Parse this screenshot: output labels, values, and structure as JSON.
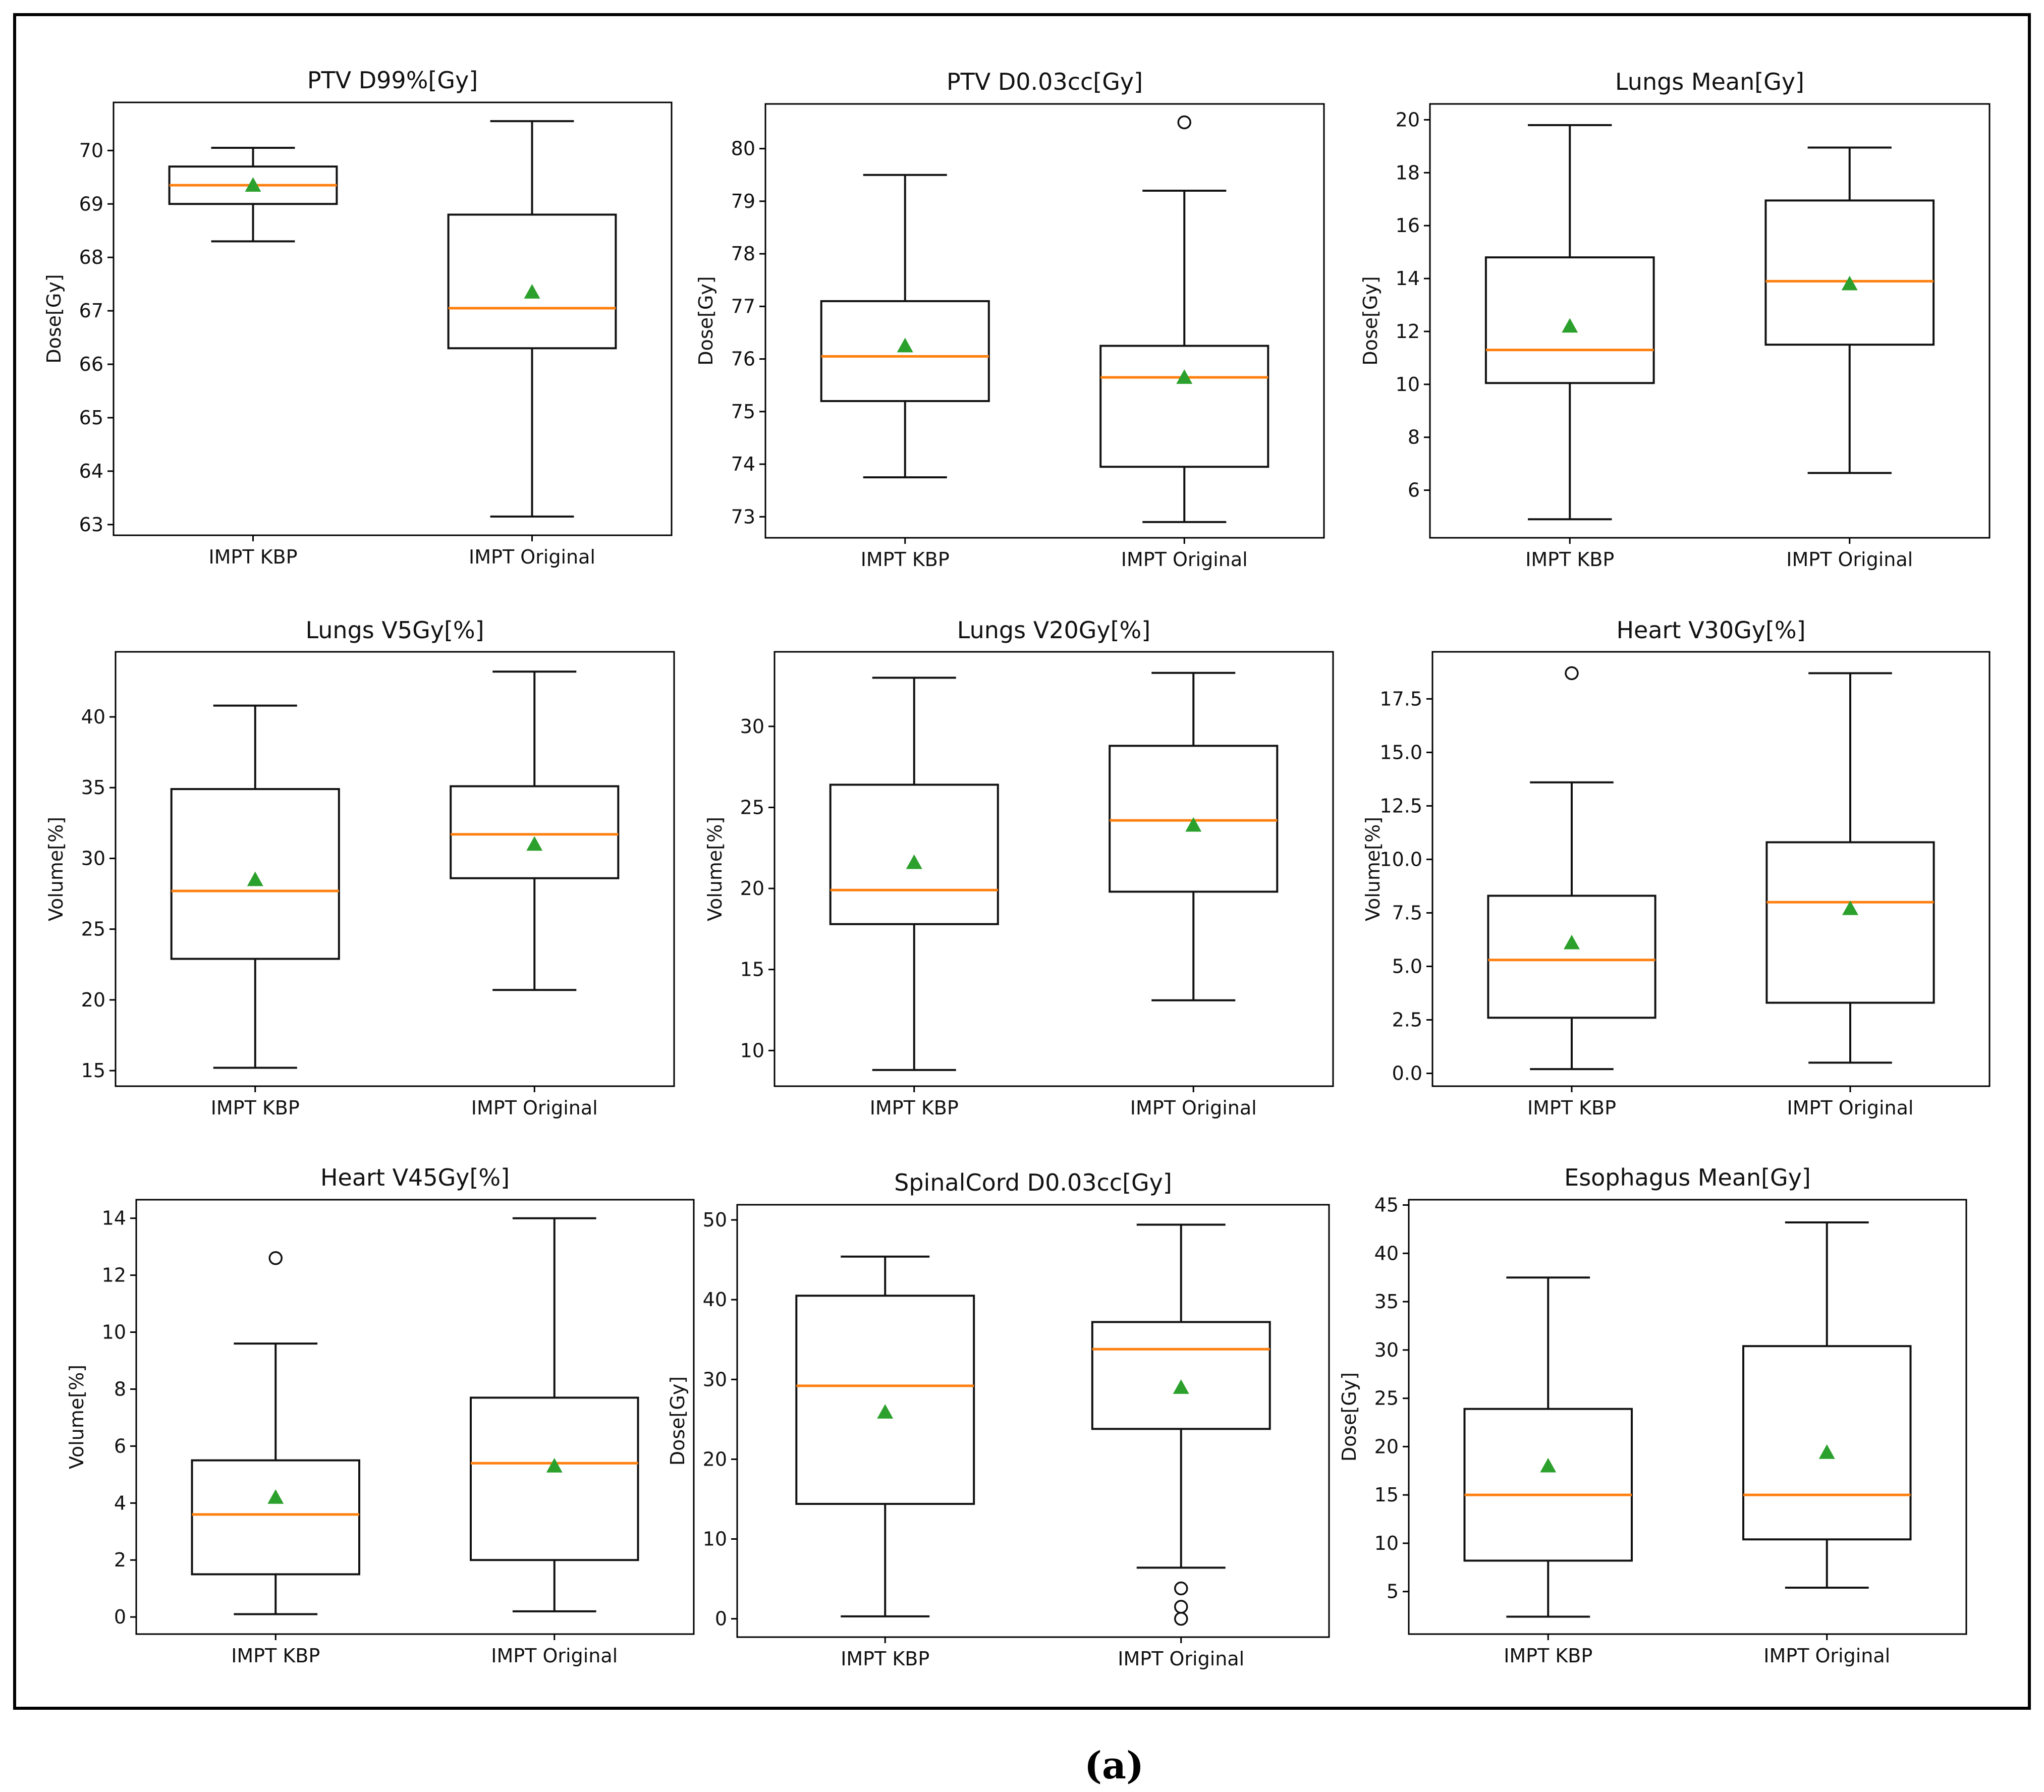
{
  "figure": {
    "caption": "(a)",
    "colors": {
      "median": "#ff7f0e",
      "mean": "#2ca02c",
      "box": "#111111",
      "frame": "#000000"
    }
  },
  "chart_data": [
    {
      "type": "box",
      "title": "PTV D99%[Gy]",
      "ylabel": "Dose[Gy]",
      "ylim": [
        62.8,
        70.9
      ],
      "yticks": [
        "63",
        "64",
        "65",
        "66",
        "67",
        "68",
        "69",
        "70"
      ],
      "categories": [
        "IMPT KBP",
        "IMPT Original"
      ],
      "boxes": [
        {
          "whisker_low": 68.3,
          "q1": 69.0,
          "median": 69.35,
          "q3": 69.7,
          "whisker_high": 70.05,
          "mean": 69.35,
          "outliers": []
        },
        {
          "whisker_low": 63.15,
          "q1": 66.3,
          "median": 67.05,
          "q3": 68.8,
          "whisker_high": 70.55,
          "mean": 67.35,
          "outliers": []
        }
      ]
    },
    {
      "type": "box",
      "title": "PTV D0.03cc[Gy]",
      "ylabel": "Dose[Gy]",
      "ylim": [
        72.6,
        80.85
      ],
      "yticks": [
        "73",
        "74",
        "75",
        "76",
        "77",
        "78",
        "79",
        "80"
      ],
      "categories": [
        "IMPT KBP",
        "IMPT Original"
      ],
      "boxes": [
        {
          "whisker_low": 73.75,
          "q1": 75.2,
          "median": 76.05,
          "q3": 77.1,
          "whisker_high": 79.5,
          "mean": 76.25,
          "outliers": []
        },
        {
          "whisker_low": 72.9,
          "q1": 73.95,
          "median": 75.65,
          "q3": 76.25,
          "whisker_high": 79.2,
          "mean": 75.65,
          "outliers": [
            80.5
          ]
        }
      ]
    },
    {
      "type": "box",
      "title": "Lungs Mean[Gy]",
      "ylabel": "Dose[Gy]",
      "ylim": [
        4.2,
        20.6
      ],
      "yticks": [
        "6",
        "8",
        "10",
        "12",
        "14",
        "16",
        "18",
        "20"
      ],
      "categories": [
        "IMPT KBP",
        "IMPT Original"
      ],
      "boxes": [
        {
          "whisker_low": 4.9,
          "q1": 10.05,
          "median": 11.3,
          "q3": 14.8,
          "whisker_high": 19.8,
          "mean": 12.2,
          "outliers": []
        },
        {
          "whisker_low": 6.65,
          "q1": 11.5,
          "median": 13.9,
          "q3": 16.95,
          "whisker_high": 18.95,
          "mean": 13.8,
          "outliers": []
        }
      ]
    },
    {
      "type": "box",
      "title": "Lungs V5Gy[%]",
      "ylabel": "Volume[%]",
      "ylim": [
        13.9,
        44.6
      ],
      "yticks": [
        "15",
        "20",
        "25",
        "30",
        "35",
        "40"
      ],
      "categories": [
        "IMPT KBP",
        "IMPT Original"
      ],
      "boxes": [
        {
          "whisker_low": 15.2,
          "q1": 22.9,
          "median": 27.7,
          "q3": 34.9,
          "whisker_high": 40.8,
          "mean": 28.5,
          "outliers": []
        },
        {
          "whisker_low": 20.7,
          "q1": 28.6,
          "median": 31.7,
          "q3": 35.1,
          "whisker_high": 43.2,
          "mean": 31.0,
          "outliers": []
        }
      ]
    },
    {
      "type": "box",
      "title": "Lungs V20Gy[%]",
      "ylabel": "Volume[%]",
      "ylim": [
        7.8,
        34.6
      ],
      "yticks": [
        "10",
        "15",
        "20",
        "25",
        "30"
      ],
      "categories": [
        "IMPT KBP",
        "IMPT Original"
      ],
      "boxes": [
        {
          "whisker_low": 8.8,
          "q1": 17.8,
          "median": 19.9,
          "q3": 26.4,
          "whisker_high": 33.0,
          "mean": 21.6,
          "outliers": []
        },
        {
          "whisker_low": 13.1,
          "q1": 19.8,
          "median": 24.2,
          "q3": 28.8,
          "whisker_high": 33.3,
          "mean": 23.9,
          "outliers": []
        }
      ]
    },
    {
      "type": "box",
      "title": "Heart V30Gy[%]",
      "ylabel": "Volume[%]",
      "ylim": [
        -0.6,
        19.7
      ],
      "yticks": [
        "0.0",
        "2.5",
        "5.0",
        "7.5",
        "10.0",
        "12.5",
        "15.0",
        "17.5"
      ],
      "categories": [
        "IMPT KBP",
        "IMPT Original"
      ],
      "boxes": [
        {
          "whisker_low": 0.2,
          "q1": 2.6,
          "median": 5.3,
          "q3": 8.3,
          "whisker_high": 13.6,
          "mean": 6.1,
          "outliers": [
            18.7
          ]
        },
        {
          "whisker_low": 0.5,
          "q1": 3.3,
          "median": 8.0,
          "q3": 10.8,
          "whisker_high": 18.7,
          "mean": 7.7,
          "outliers": []
        }
      ]
    },
    {
      "type": "box",
      "title": "Heart V45Gy[%]",
      "ylabel": "Volume[%]",
      "ylim": [
        -0.6,
        14.65
      ],
      "yticks": [
        "0",
        "2",
        "4",
        "6",
        "8",
        "10",
        "12",
        "14"
      ],
      "categories": [
        "IMPT KBP",
        "IMPT Original"
      ],
      "boxes": [
        {
          "whisker_low": 0.1,
          "q1": 1.5,
          "median": 3.6,
          "q3": 5.5,
          "whisker_high": 9.6,
          "mean": 4.2,
          "outliers": [
            12.6
          ]
        },
        {
          "whisker_low": 0.2,
          "q1": 2.0,
          "median": 5.4,
          "q3": 7.7,
          "whisker_high": 14.0,
          "mean": 5.3,
          "outliers": []
        }
      ]
    },
    {
      "type": "box",
      "title": "SpinalCord D0.03cc[Gy]",
      "ylabel": "Dose[Gy]",
      "ylim": [
        -2.3,
        51.9
      ],
      "yticks": [
        "0",
        "10",
        "20",
        "30",
        "40",
        "50"
      ],
      "categories": [
        "IMPT KBP",
        "IMPT Original"
      ],
      "boxes": [
        {
          "whisker_low": 0.3,
          "q1": 14.4,
          "median": 29.2,
          "q3": 40.5,
          "whisker_high": 45.4,
          "mean": 25.9,
          "outliers": []
        },
        {
          "whisker_low": 6.4,
          "q1": 23.8,
          "median": 33.8,
          "q3": 37.2,
          "whisker_high": 49.4,
          "mean": 29.0,
          "outliers": [
            3.8,
            1.5,
            0.0
          ]
        }
      ]
    },
    {
      "type": "box",
      "title": "Esophagus Mean[Gy]",
      "ylabel": "Dose[Gy]",
      "ylim": [
        0.6,
        45.55
      ],
      "yticks": [
        "5",
        "10",
        "15",
        "20",
        "25",
        "30",
        "35",
        "40",
        "45"
      ],
      "categories": [
        "IMPT KBP",
        "IMPT Original"
      ],
      "boxes": [
        {
          "whisker_low": 2.4,
          "q1": 8.2,
          "median": 15.0,
          "q3": 23.9,
          "whisker_high": 37.5,
          "mean": 18.0,
          "outliers": []
        },
        {
          "whisker_low": 5.4,
          "q1": 10.4,
          "median": 15.0,
          "q3": 30.4,
          "whisker_high": 43.2,
          "mean": 19.4,
          "outliers": []
        }
      ]
    }
  ]
}
